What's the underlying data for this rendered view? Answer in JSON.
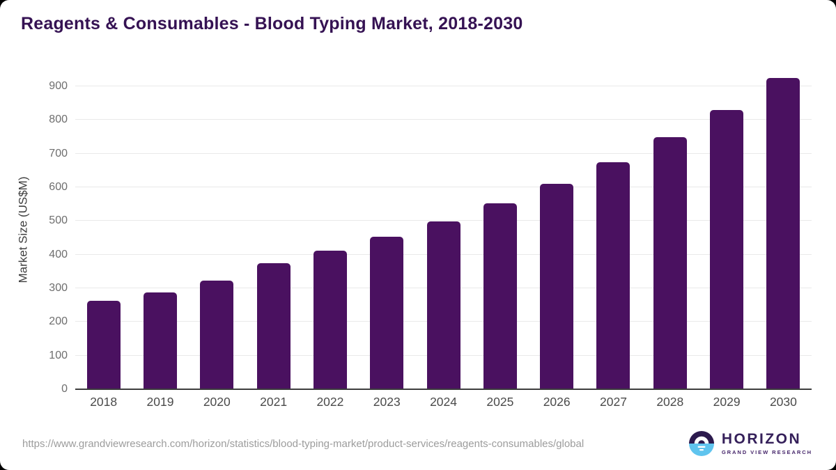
{
  "header": {
    "title": "Reagents & Consumables - Blood Typing Market, 2018-2030",
    "title_color": "#351253"
  },
  "chart_data": {
    "type": "bar",
    "title": "Reagents & Consumables - Blood Typing Market, 2018-2030",
    "categories": [
      "2018",
      "2019",
      "2020",
      "2021",
      "2022",
      "2023",
      "2024",
      "2025",
      "2026",
      "2027",
      "2028",
      "2029",
      "2030"
    ],
    "values": [
      262,
      288,
      323,
      375,
      412,
      454,
      499,
      553,
      611,
      675,
      749,
      831,
      926
    ],
    "xlabel": "",
    "ylabel": "Market Size (US$M)",
    "ylim": [
      0,
      950
    ],
    "yticks": [
      0,
      100,
      200,
      300,
      400,
      500,
      600,
      700,
      800,
      900
    ],
    "grid": "horizontal",
    "legend": "none",
    "bar_color": "#4a1160"
  },
  "footer": {
    "source_url": "https://www.grandviewresearch.com/horizon/statistics/blood-typing-market/product-services/reagents-consumables/global",
    "logo": {
      "name": "HORIZON",
      "subtitle": "GRAND VIEW RESEARCH",
      "circle_top_color": "#2c1a4d",
      "circle_bottom_color": "#5fc4ee"
    }
  }
}
